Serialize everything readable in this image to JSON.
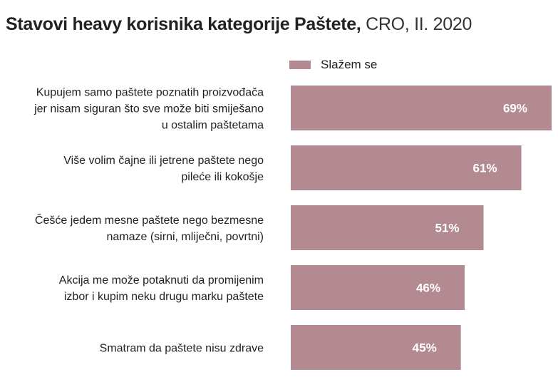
{
  "title": {
    "main": "Stavovi heavy korisnika kategorije Paštete,",
    "sub": "CRO, II. 2020"
  },
  "legend": {
    "label": "Slažem se"
  },
  "colors": {
    "bar": "#b38a91",
    "value_label": "#ffffff",
    "category_label": "#222222"
  },
  "chart_data": {
    "type": "bar",
    "orientation": "horizontal",
    "title": "Stavovi heavy korisnika kategorije Paštete, CRO, II. 2020",
    "categories": [
      [
        "Kupujem samo paštete poznatih proizvođača",
        "jer nisam siguran što sve može biti smiješano",
        "u ostalim paštetama"
      ],
      [
        "Više volim čajne ili jetrene paštete nego",
        "pileće ili kokošje"
      ],
      [
        "Češće jedem mesne paštete nego bezmesne",
        "namaze (sirni, mliječni, povrtni)"
      ],
      [
        "Akcija me može potaknuti da promijenim",
        "izbor i kupim neku drugu marku paštete"
      ],
      [
        "Smatram da paštete nisu zdrave"
      ]
    ],
    "series": [
      {
        "name": "Slažem se",
        "values": [
          69,
          61,
          51,
          46,
          45
        ],
        "labels": [
          "69%",
          "61%",
          "51%",
          "46%",
          "45%"
        ]
      }
    ],
    "xlim": [
      0,
      69
    ],
    "grid": false,
    "legend_position": "top"
  }
}
